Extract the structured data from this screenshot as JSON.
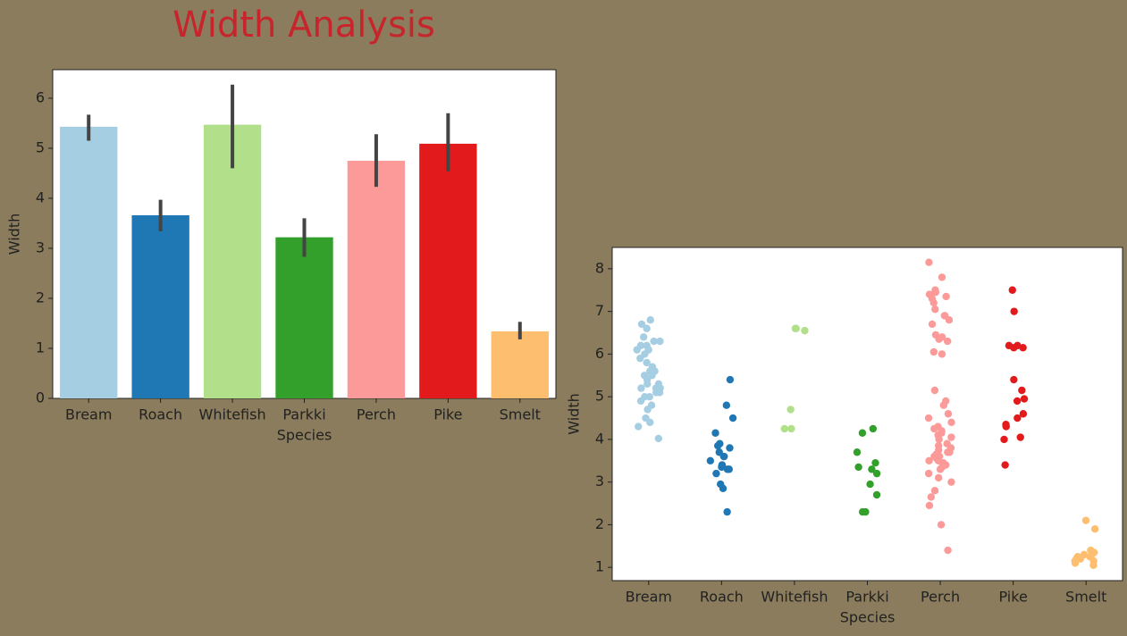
{
  "title": "Width Analysis",
  "chart_data": [
    {
      "type": "bar",
      "xlabel": "Species",
      "ylabel": "Width",
      "categories": [
        "Bream",
        "Roach",
        "Whitefish",
        "Parkki",
        "Perch",
        "Pike",
        "Smelt"
      ],
      "values": [
        5.43,
        3.66,
        5.47,
        3.22,
        4.75,
        5.09,
        1.34
      ],
      "ci_low": [
        5.15,
        3.34,
        4.6,
        2.83,
        4.23,
        4.54,
        1.18
      ],
      "ci_high": [
        5.67,
        3.97,
        6.27,
        3.6,
        5.28,
        5.7,
        1.53
      ],
      "colors": [
        "#a6cee3",
        "#1f78b4",
        "#b2df8a",
        "#33a02c",
        "#fb9a99",
        "#e31a1c",
        "#fdbf6f"
      ],
      "errcolor": "#444444",
      "ylim": [
        0,
        6.57
      ],
      "yticks": [
        0,
        1,
        2,
        3,
        4,
        5,
        6
      ]
    },
    {
      "type": "strip",
      "xlabel": "Species",
      "ylabel": "Width",
      "categories": [
        "Bream",
        "Roach",
        "Whitefish",
        "Parkki",
        "Perch",
        "Pike",
        "Smelt"
      ],
      "values": [
        [
          4.02,
          4.3,
          4.4,
          4.5,
          4.7,
          4.8,
          4.9,
          5.0,
          5.0,
          5.1,
          5.1,
          5.2,
          5.2,
          5.2,
          5.3,
          5.3,
          5.4,
          5.5,
          5.5,
          5.6,
          5.6,
          5.7,
          5.8,
          5.9,
          6.0,
          6.1,
          6.1,
          6.2,
          6.2,
          6.3,
          6.3,
          6.4,
          6.6,
          6.7,
          6.8
        ],
        [
          2.3,
          2.85,
          2.95,
          3.2,
          3.3,
          3.3,
          3.35,
          3.4,
          3.4,
          3.5,
          3.6,
          3.6,
          3.7,
          3.8,
          3.85,
          3.9,
          4.15,
          4.5,
          4.8,
          5.4
        ],
        [
          4.25,
          4.25,
          4.7,
          6.55,
          6.6,
          6.6
        ],
        [
          2.3,
          2.3,
          2.7,
          2.95,
          3.2,
          3.3,
          3.35,
          3.45,
          3.7,
          4.15,
          4.25
        ],
        [
          1.4,
          2.0,
          2.45,
          2.65,
          2.8,
          3.0,
          3.1,
          3.2,
          3.3,
          3.35,
          3.4,
          3.45,
          3.5,
          3.5,
          3.55,
          3.6,
          3.6,
          3.65,
          3.7,
          3.7,
          3.75,
          3.8,
          3.85,
          3.9,
          4.0,
          4.05,
          4.1,
          4.15,
          4.2,
          4.25,
          4.3,
          4.4,
          4.5,
          4.6,
          4.8,
          4.9,
          5.15,
          6.0,
          6.05,
          6.3,
          6.35,
          6.4,
          6.45,
          6.7,
          6.8,
          6.9,
          6.9,
          7.05,
          7.2,
          7.3,
          7.35,
          7.4,
          7.45,
          7.5,
          7.8,
          8.15
        ],
        [
          3.4,
          4.0,
          4.05,
          4.3,
          4.35,
          4.5,
          4.6,
          4.9,
          4.95,
          5.15,
          5.4,
          6.15,
          6.15,
          6.2,
          6.2,
          7.0,
          7.5
        ],
        [
          1.05,
          1.1,
          1.15,
          1.15,
          1.2,
          1.2,
          1.25,
          1.25,
          1.3,
          1.3,
          1.35,
          1.4,
          1.9,
          2.1
        ]
      ],
      "colors": [
        "#a6cee3",
        "#1f78b4",
        "#b2df8a",
        "#33a02c",
        "#fb9a99",
        "#e31a1c",
        "#fdbf6f"
      ],
      "ylim": [
        0.69,
        8.5
      ],
      "yticks": [
        1,
        2,
        3,
        4,
        5,
        6,
        7,
        8
      ]
    }
  ]
}
